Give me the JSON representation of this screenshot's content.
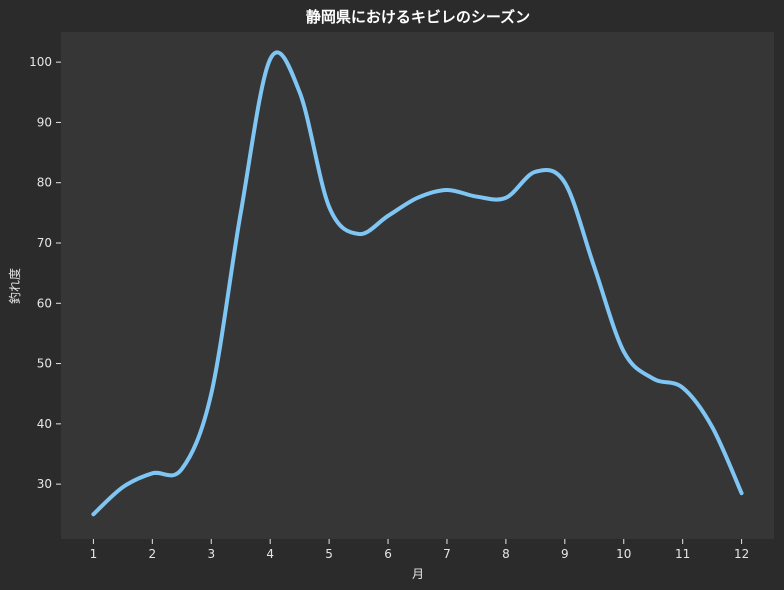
{
  "chart_data": {
    "type": "line",
    "title": "静岡県におけるキビレのシーズン",
    "xlabel": "月",
    "ylabel": "釣れ度",
    "x": [
      1,
      1.5,
      2,
      2.5,
      3,
      3.5,
      4,
      4.5,
      5,
      5.5,
      6,
      6.5,
      7,
      7.5,
      8,
      8.5,
      9,
      9.5,
      10,
      10.5,
      11,
      11.5,
      12
    ],
    "series": [
      {
        "values": [
          25,
          29.5,
          31.8,
          32.5,
          45,
          75,
          100.5,
          95,
          76,
          71.5,
          74.5,
          77.5,
          78.8,
          77.7,
          77.5,
          81.8,
          80,
          66,
          52,
          47.5,
          46,
          39.5,
          28.5
        ],
        "color": "#7fc6f5"
      }
    ],
    "xticks": [
      "1",
      "2",
      "3",
      "4",
      "5",
      "6",
      "7",
      "8",
      "9",
      "10",
      "11",
      "12"
    ],
    "yticks": [
      "30",
      "40",
      "50",
      "60",
      "70",
      "80",
      "90",
      "100"
    ],
    "xlim": [
      0.45,
      12.55
    ],
    "ylim": [
      20.9,
      105
    ],
    "grid": false,
    "background_color": "#2b2b2b",
    "plot_background_color": "#363636",
    "text_color": "#e6e6e6"
  }
}
